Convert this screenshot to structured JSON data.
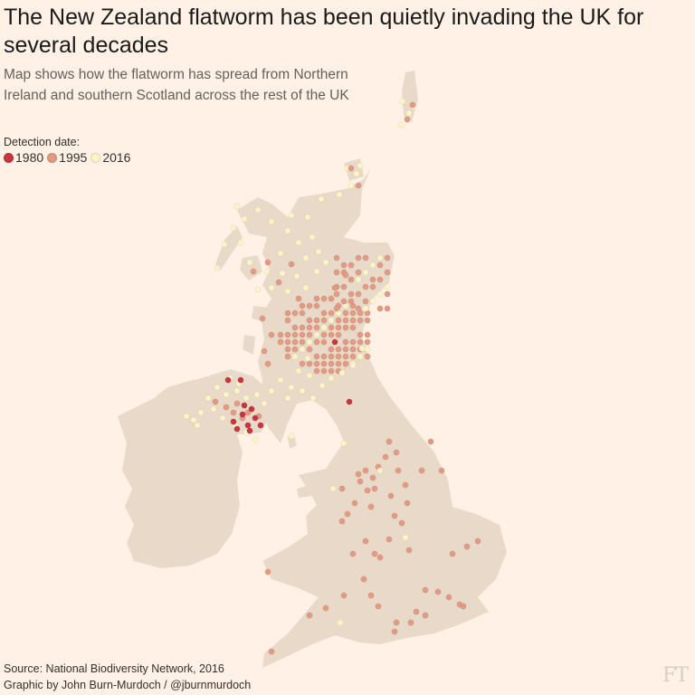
{
  "header": {
    "title": "The New Zealand flatworm has been quietly invading the UK for several decades",
    "subtitle": "Map shows how the flatworm has spread from Northern Ireland and southern Scotland across the rest of the UK"
  },
  "legend": {
    "title": "Detection date:",
    "items": [
      {
        "label": "1980",
        "color": "#C8353E"
      },
      {
        "label": "1995",
        "color": "#E29A83"
      },
      {
        "label": "2016",
        "color": "#FBF5C5"
      }
    ]
  },
  "map": {
    "land_color": "#E9D9C9",
    "region": "United Kingdom and Ireland"
  },
  "footer": {
    "source": "Source: National Biodiversity Network, 2016",
    "credit": "Graphic by John Burn-Murdoch / @jburnmurdoch",
    "logo": "FT"
  }
}
